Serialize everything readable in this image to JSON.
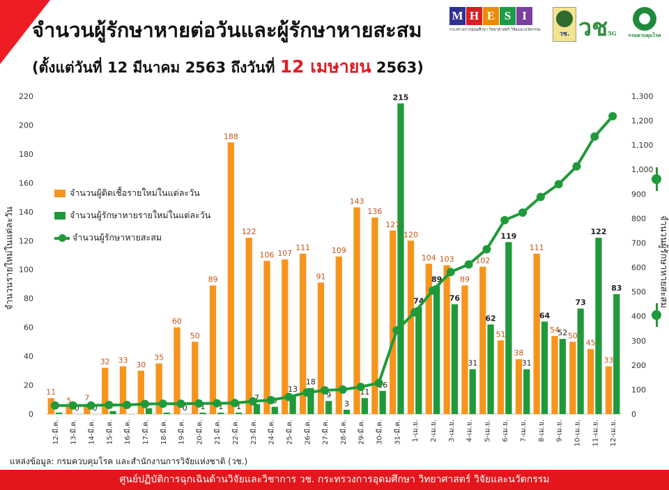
{
  "title": "จำนวนผู้รักษาหายต่อวันและผู้รักษาหายสะสม",
  "subtitle": {
    "prefix": "(ตั้งแต่วันที่ 12 มีนาคม 2563 ถึงวันที่",
    "highlight": "12 เมษายน",
    "suffix": "2563)"
  },
  "logos": {
    "mhesi": [
      "M",
      "H",
      "E",
      "S",
      "I"
    ],
    "mhesi_colors": [
      "#2e3192",
      "#d71f26",
      "#ed8b00",
      "#1e9b48",
      "#7b3fa0"
    ],
    "mhesi_caption": "กระทรวงการอุดมศึกษา วิทยาศาสตร์ วิจัยและนวัตกรรม",
    "seal_text": "วช.",
    "vc_text": "วช",
    "vc_sub": "5G",
    "ddc_text": "กรมควบคุมโรค"
  },
  "source": "แหล่งข้อมูล: กรมควบคุมโรค และสำนักงานการวิจัยแห่งชาติ (วช.)",
  "footer": "ศูนย์ปฏิบัติการฉุกเฉินด้านวิจัยและวิชาการ   วช.   กระทรวงการอุดมศึกษา วิทยาศาสตร์ วิจัยและนวัตกรรม",
  "chart_data": {
    "type": "bar",
    "categories": [
      "12-มี.ค.",
      "13-มี.ค.",
      "14-มี.ค.",
      "15-มี.ค.",
      "16-มี.ค.",
      "17-มี.ค.",
      "18-มี.ค.",
      "19-มี.ค.",
      "20-มี.ค.",
      "21-มี.ค.",
      "22-มี.ค.",
      "23-มี.ค.",
      "24-มี.ค.",
      "25-มี.ค.",
      "26-มี.ค.",
      "27-มี.ค.",
      "28-มี.ค.",
      "29-มี.ค.",
      "30-มี.ค.",
      "31-มี.ค.",
      "1-เม.ย.",
      "2-เม.ย.",
      "3-เม.ย.",
      "4-เม.ย.",
      "5-เม.ย.",
      "6-เม.ย.",
      "7-เม.ย.",
      "8-เม.ย.",
      "9-เม.ย.",
      "10-เม.ย.",
      "11-เม.ย.",
      "12-เม.ย."
    ],
    "series": [
      {
        "name": "จำนวนผู้ติดเชื้อรายใหม่ในแต่ละวัน",
        "axis": "left",
        "color": "#f7941d",
        "values": [
          11,
          5,
          7,
          32,
          33,
          30,
          35,
          60,
          50,
          89,
          188,
          122,
          106,
          107,
          111,
          91,
          109,
          143,
          136,
          127,
          120,
          104,
          103,
          89,
          102,
          51,
          38,
          111,
          54,
          50,
          45,
          33
        ]
      },
      {
        "name": "จำนวนผู้รักษาหายรายใหม่ในแต่ละวัน",
        "axis": "left",
        "color": "#1f9a3a",
        "values": [
          1,
          0,
          0,
          2,
          0,
          4,
          1,
          0,
          1,
          1,
          1,
          7,
          5,
          13,
          18,
          9,
          3,
          11,
          16,
          215,
          74,
          89,
          76,
          31,
          62,
          119,
          31,
          64,
          52,
          73,
          122,
          83
        ]
      },
      {
        "name": "จำนวนผู้รักษาหายสะสม",
        "axis": "right",
        "type": "line",
        "color": "#1f9a3a",
        "values": [
          35,
          35,
          35,
          37,
          37,
          41,
          42,
          42,
          43,
          44,
          45,
          52,
          57,
          70,
          88,
          97,
          100,
          111,
          127,
          342,
          416,
          505,
          581,
          612,
          674,
          793,
          824,
          888,
          940,
          1013,
          1135,
          1218
        ]
      }
    ],
    "show_bar_labels": {
      "0": [
        true,
        true,
        true,
        true,
        true,
        true,
        true,
        true,
        true,
        true,
        true,
        true,
        true,
        true,
        true,
        true,
        true,
        true,
        true,
        true,
        true,
        true,
        true,
        true,
        true,
        true,
        true,
        true,
        true,
        true,
        true,
        true
      ],
      "1": [
        false,
        true,
        true,
        false,
        false,
        false,
        false,
        true,
        true,
        true,
        true,
        true,
        true,
        true,
        true,
        true,
        true,
        true,
        true,
        true,
        true,
        true,
        true,
        true,
        true,
        true,
        true,
        true,
        true,
        true,
        true,
        true
      ]
    },
    "ylabel": "จำนวนรายใหม่ในแต่ละวัน",
    "ylabel_right": "จำนวนผู้รักษาหายสะสม",
    "ylim": [
      0,
      220
    ],
    "ylim_right": [
      0,
      1300
    ],
    "yticks": [
      0,
      20,
      40,
      60,
      80,
      100,
      120,
      140,
      160,
      180,
      200,
      220
    ],
    "yticks_right": [
      "0",
      "100",
      "200",
      "300",
      "400",
      "500",
      "600",
      "700",
      "800",
      "900",
      "1,000",
      "1,100",
      "1,200",
      "1,300"
    ],
    "legend_position": "left",
    "grid": false
  }
}
